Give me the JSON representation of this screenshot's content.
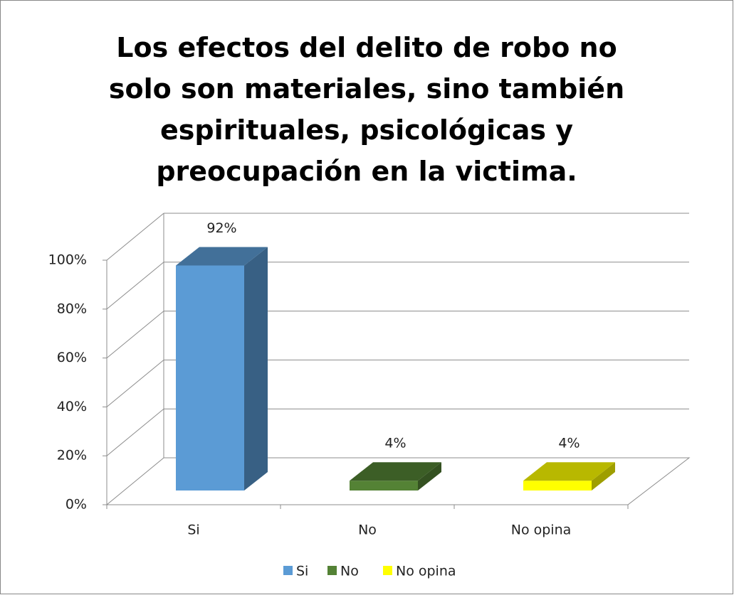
{
  "chart_data": {
    "type": "bar3d",
    "title": "Los efectos del delito de robo no solo son materiales, sino también espirituales, psicológicas y preocupación en la victima.",
    "categories": [
      "Si",
      "No",
      "No opina"
    ],
    "values": [
      92,
      4,
      4
    ],
    "value_labels": [
      "92%",
      "4%",
      "4%"
    ],
    "colors": [
      "#5b9bd5",
      "#548235",
      "#ffff00"
    ],
    "ylim": [
      0,
      100
    ],
    "yticks": [
      {
        "value": 0,
        "label": "0%"
      },
      {
        "value": 20,
        "label": "20%"
      },
      {
        "value": 40,
        "label": "40%"
      },
      {
        "value": 60,
        "label": "60%"
      },
      {
        "value": 80,
        "label": "80%"
      },
      {
        "value": 100,
        "label": "100%"
      }
    ],
    "grid": true,
    "legend": "bottom"
  }
}
